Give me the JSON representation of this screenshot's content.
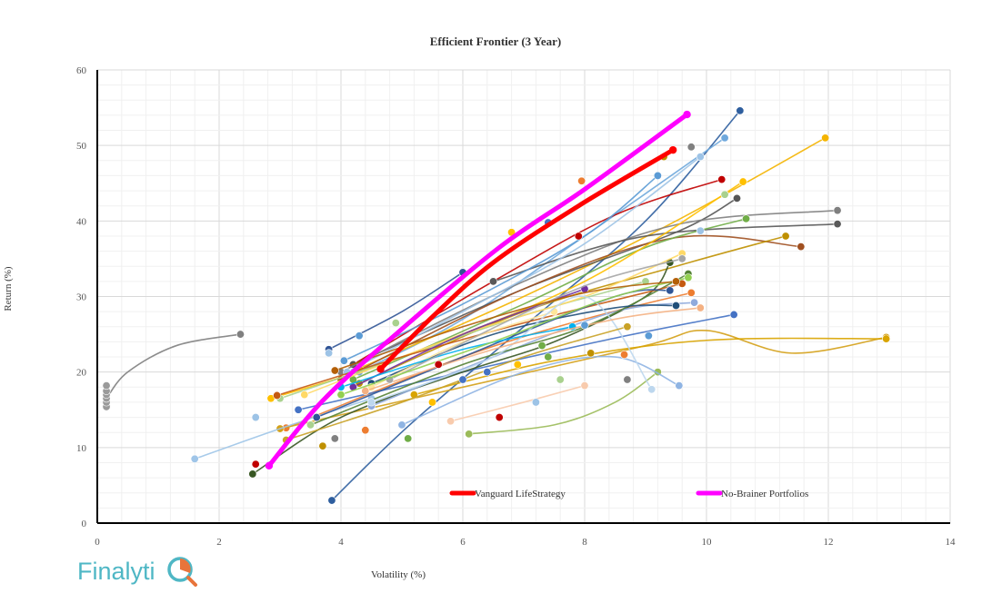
{
  "chart_data": {
    "type": "scatter",
    "title": "Efficient Frontier (3 Year)",
    "xlabel": "Volatility (%)",
    "ylabel": "Return (%)",
    "xlim": [
      0,
      14
    ],
    "ylim": [
      0,
      60
    ],
    "x_ticks": [
      "0",
      "2",
      "4",
      "6",
      "8",
      "10",
      "12",
      "14"
    ],
    "y_ticks": [
      "0",
      "10",
      "20",
      "30",
      "40",
      "50",
      "60"
    ],
    "grid": true,
    "legend_position": "bottom-right, inside plot",
    "highlight_series": [
      {
        "name": "Vanguard LifeStrategy",
        "color": "#ff0000",
        "points": [
          [
            4.65,
            20.4
          ],
          [
            5.5,
            27.3
          ],
          [
            6.5,
            34.5
          ],
          [
            7.9,
            42.0
          ],
          [
            9.45,
            49.4
          ]
        ]
      },
      {
        "name": "No-Brainer Portfolios",
        "color": "#ff00ff",
        "points": [
          [
            2.82,
            7.6
          ],
          [
            3.7,
            16.2
          ],
          [
            4.9,
            25.0
          ],
          [
            6.6,
            36.5
          ],
          [
            8.0,
            44.2
          ],
          [
            9.68,
            54.1
          ]
        ]
      }
    ],
    "background_series": [
      {
        "color": "#2e5e9e",
        "points": [
          [
            3.85,
            3.0
          ],
          [
            5.1,
            12.8
          ],
          [
            7.0,
            26.0
          ],
          [
            9.0,
            40.0
          ],
          [
            10.55,
            54.6
          ]
        ]
      },
      {
        "color": "#6fa8dc",
        "points": [
          [
            4.3,
            20.0
          ],
          [
            6.0,
            27.0
          ],
          [
            8.0,
            38.0
          ],
          [
            10.3,
            51.0
          ]
        ]
      },
      {
        "color": "#f4b400",
        "points": [
          [
            4.3,
            20.5
          ],
          [
            7.0,
            30.0
          ],
          [
            9.5,
            40.0
          ],
          [
            11.95,
            51.0
          ]
        ]
      },
      {
        "color": "#c00000",
        "points": [
          [
            4.2,
            21.0
          ],
          [
            6.5,
            32.0
          ],
          [
            8.5,
            40.8
          ],
          [
            10.25,
            45.5
          ]
        ]
      },
      {
        "color": "#555555",
        "points": [
          [
            4.2,
            21.0
          ],
          [
            7.0,
            31.0
          ],
          [
            9.5,
            38.5
          ],
          [
            10.5,
            43.0
          ]
        ]
      },
      {
        "color": "#7f7f7f",
        "points": [
          [
            4.0,
            20.0
          ],
          [
            7.0,
            32.0
          ],
          [
            9.5,
            39.5
          ],
          [
            12.15,
            41.4
          ]
        ]
      },
      {
        "color": "#595959",
        "points": [
          [
            6.5,
            32.0
          ],
          [
            9.0,
            38.0
          ],
          [
            12.15,
            39.6
          ]
        ]
      },
      {
        "color": "#a05020",
        "points": [
          [
            4.0,
            19.0
          ],
          [
            7.0,
            31.0
          ],
          [
            9.5,
            37.8
          ],
          [
            11.55,
            36.6
          ]
        ]
      },
      {
        "color": "#bf9000",
        "points": [
          [
            4.3,
            18.5
          ],
          [
            7.0,
            28.0
          ],
          [
            9.5,
            34.0
          ],
          [
            11.3,
            38.0
          ]
        ]
      },
      {
        "color": "#70ad47",
        "points": [
          [
            4.2,
            19.0
          ],
          [
            7.0,
            29.0
          ],
          [
            9.0,
            36.5
          ],
          [
            10.65,
            40.3
          ]
        ]
      },
      {
        "color": "#ffc000",
        "points": [
          [
            2.85,
            16.5
          ],
          [
            5.0,
            22.0
          ],
          [
            8.0,
            32.0
          ],
          [
            10.6,
            45.2
          ]
        ]
      },
      {
        "color": "#9dc3e6",
        "points": [
          [
            4.1,
            20.0
          ],
          [
            6.0,
            28.0
          ],
          [
            8.0,
            37.0
          ],
          [
            9.9,
            48.5
          ]
        ]
      },
      {
        "color": "#5b9bd5",
        "points": [
          [
            4.05,
            21.5
          ],
          [
            6.0,
            29.0
          ],
          [
            8.0,
            38.0
          ],
          [
            9.2,
            46.0
          ]
        ]
      },
      {
        "color": "#305496",
        "points": [
          [
            3.8,
            23.0
          ],
          [
            5.0,
            28.0
          ],
          [
            6.0,
            33.2
          ]
        ]
      },
      {
        "color": "#ed7d31",
        "points": [
          [
            3.1,
            12.6
          ],
          [
            6.0,
            22.0
          ],
          [
            8.0,
            27.0
          ],
          [
            9.75,
            30.5
          ]
        ]
      },
      {
        "color": "#4472c4",
        "points": [
          [
            3.3,
            15.0
          ],
          [
            6.0,
            20.0
          ],
          [
            8.5,
            24.5
          ],
          [
            10.45,
            27.6
          ]
        ]
      },
      {
        "color": "#9bbb59",
        "points": [
          [
            6.1,
            11.8
          ],
          [
            7.5,
            13.0
          ],
          [
            8.5,
            16.0
          ],
          [
            9.2,
            20.0
          ]
        ]
      },
      {
        "color": "#d4a017",
        "points": [
          [
            3.0,
            12.5
          ],
          [
            6.0,
            18.0
          ],
          [
            9.0,
            23.5
          ],
          [
            10.0,
            25.5
          ],
          [
            11.4,
            22.5
          ],
          [
            12.95,
            24.6
          ]
        ]
      },
      {
        "color": "#d9a400",
        "points": [
          [
            5.2,
            17.0
          ],
          [
            7.5,
            21.5
          ],
          [
            10.0,
            24.2
          ],
          [
            12.95,
            24.4
          ]
        ]
      },
      {
        "color": "#808080",
        "points": [
          [
            0.15,
            16.5
          ],
          [
            0.5,
            20.0
          ],
          [
            1.3,
            23.5
          ],
          [
            2.35,
            25.0
          ]
        ]
      },
      {
        "color": "#9fc5e8",
        "points": [
          [
            1.6,
            8.5
          ],
          [
            3.0,
            12.5
          ],
          [
            4.5,
            16.5
          ]
        ]
      },
      {
        "color": "#385723",
        "points": [
          [
            2.55,
            6.5
          ],
          [
            4.0,
            14.0
          ],
          [
            6.0,
            20.0
          ],
          [
            7.5,
            24.0
          ],
          [
            9.0,
            30.0
          ],
          [
            9.4,
            34.5
          ]
        ]
      },
      {
        "color": "#a9d18e",
        "points": [
          [
            3.0,
            16.5
          ],
          [
            5.0,
            22.0
          ],
          [
            7.0,
            27.5
          ],
          [
            9.0,
            32.0
          ]
        ]
      },
      {
        "color": "#f8cbad",
        "points": [
          [
            5.8,
            13.5
          ],
          [
            7.0,
            16.0
          ],
          [
            8.0,
            18.2
          ]
        ]
      },
      {
        "color": "#ffd966",
        "points": [
          [
            3.4,
            17.0
          ],
          [
            6.0,
            25.0
          ],
          [
            8.0,
            30.0
          ],
          [
            9.6,
            35.7
          ]
        ]
      },
      {
        "color": "#8faadc",
        "points": [
          [
            4.5,
            15.5
          ],
          [
            6.5,
            22.0
          ],
          [
            8.5,
            28.0
          ],
          [
            9.8,
            29.2
          ]
        ]
      },
      {
        "color": "#548235",
        "points": [
          [
            3.5,
            13.0
          ],
          [
            6.0,
            21.0
          ],
          [
            8.0,
            26.0
          ],
          [
            9.7,
            33.0
          ]
        ]
      },
      {
        "color": "#1f4e79",
        "points": [
          [
            4.5,
            18.5
          ],
          [
            6.5,
            25.0
          ],
          [
            8.5,
            28.5
          ],
          [
            9.5,
            28.8
          ]
        ]
      },
      {
        "color": "#c55a11",
        "points": [
          [
            2.95,
            16.9
          ],
          [
            5.0,
            22.0
          ],
          [
            7.0,
            26.5
          ],
          [
            9.6,
            31.7
          ]
        ]
      },
      {
        "color": "#2f5597",
        "points": [
          [
            3.6,
            14.0
          ],
          [
            6.0,
            22.0
          ],
          [
            8.5,
            30.0
          ],
          [
            9.4,
            30.8
          ]
        ]
      },
      {
        "color": "#ffe699",
        "points": [
          [
            4.5,
            18.0
          ],
          [
            6.0,
            24.0
          ],
          [
            7.5,
            28.0
          ]
        ]
      },
      {
        "color": "#8fb4e3",
        "points": [
          [
            5.0,
            13.0
          ],
          [
            7.0,
            20.0
          ],
          [
            8.5,
            22.0
          ],
          [
            9.55,
            18.2
          ]
        ]
      },
      {
        "color": "#bdd7ee",
        "points": [
          [
            4.5,
            16.0
          ],
          [
            6.5,
            22.0
          ],
          [
            8.0,
            30.0
          ],
          [
            9.1,
            17.7
          ]
        ]
      },
      {
        "color": "#7030a0",
        "points": [
          [
            4.2,
            18.0
          ],
          [
            6.0,
            25.0
          ],
          [
            8.0,
            31.0
          ]
        ]
      },
      {
        "color": "#00b0f0",
        "points": [
          [
            4.0,
            18.0
          ],
          [
            6.0,
            23.0
          ],
          [
            7.8,
            26.0
          ]
        ]
      },
      {
        "color": "#c9a227",
        "points": [
          [
            3.1,
            11.0
          ],
          [
            5.0,
            16.0
          ],
          [
            7.0,
            22.0
          ],
          [
            8.7,
            26.0
          ]
        ]
      },
      {
        "color": "#f4b183",
        "points": [
          [
            4.4,
            17.5
          ],
          [
            6.5,
            23.0
          ],
          [
            8.5,
            27.0
          ],
          [
            9.9,
            28.5
          ]
        ]
      },
      {
        "color": "#a6a6a6",
        "points": [
          [
            4.8,
            19.0
          ],
          [
            6.8,
            27.0
          ],
          [
            8.2,
            32.0
          ],
          [
            9.6,
            35.0
          ]
        ]
      },
      {
        "color": "#92d050",
        "points": [
          [
            4.0,
            17.0
          ],
          [
            6.5,
            24.0
          ],
          [
            8.3,
            29.5
          ],
          [
            9.7,
            32.5
          ]
        ]
      },
      {
        "color": "#b45f06",
        "points": [
          [
            3.9,
            20.2
          ],
          [
            6.0,
            26.0
          ],
          [
            8.0,
            30.5
          ],
          [
            9.5,
            32.0
          ]
        ]
      }
    ],
    "extra_points": [
      [
        0.15,
        15.4
      ],
      [
        0.15,
        16.0
      ],
      [
        0.15,
        16.5
      ],
      [
        0.15,
        17.0
      ],
      [
        0.15,
        17.5
      ],
      [
        0.15,
        18.2
      ],
      [
        2.6,
        7.8
      ],
      [
        2.6,
        14.0
      ],
      [
        3.5,
        13.0
      ],
      [
        3.7,
        10.2
      ],
      [
        3.9,
        11.2
      ],
      [
        4.4,
        12.3
      ],
      [
        4.3,
        24.8
      ],
      [
        5.1,
        11.2
      ],
      [
        5.5,
        16.0
      ],
      [
        6.0,
        19.0
      ],
      [
        6.6,
        14.0
      ],
      [
        7.2,
        16.0
      ],
      [
        7.6,
        19.0
      ],
      [
        8.1,
        22.5
      ],
      [
        8.7,
        19.0
      ],
      [
        7.95,
        45.3
      ],
      [
        8.0,
        26.2
      ],
      [
        7.3,
        23.5
      ],
      [
        6.8,
        38.5
      ],
      [
        7.4,
        39.8
      ],
      [
        7.9,
        38.0
      ],
      [
        9.9,
        38.7
      ],
      [
        10.3,
        43.5
      ],
      [
        9.3,
        48.5
      ],
      [
        9.75,
        49.8
      ],
      [
        8.65,
        22.3
      ],
      [
        9.05,
        24.8
      ],
      [
        7.4,
        22.0
      ],
      [
        6.9,
        21.0
      ],
      [
        6.4,
        20.0
      ],
      [
        5.6,
        21.0
      ],
      [
        3.8,
        22.5
      ],
      [
        4.9,
        26.5
      ]
    ]
  },
  "legend": {
    "vanguard_label": "Vanguard LifeStrategy",
    "nobrainer_label": "No-Brainer Portfolios"
  },
  "logo": {
    "text": "Finalyti",
    "accent_color": "#e8743b",
    "text_color": "#4fb7c5"
  }
}
